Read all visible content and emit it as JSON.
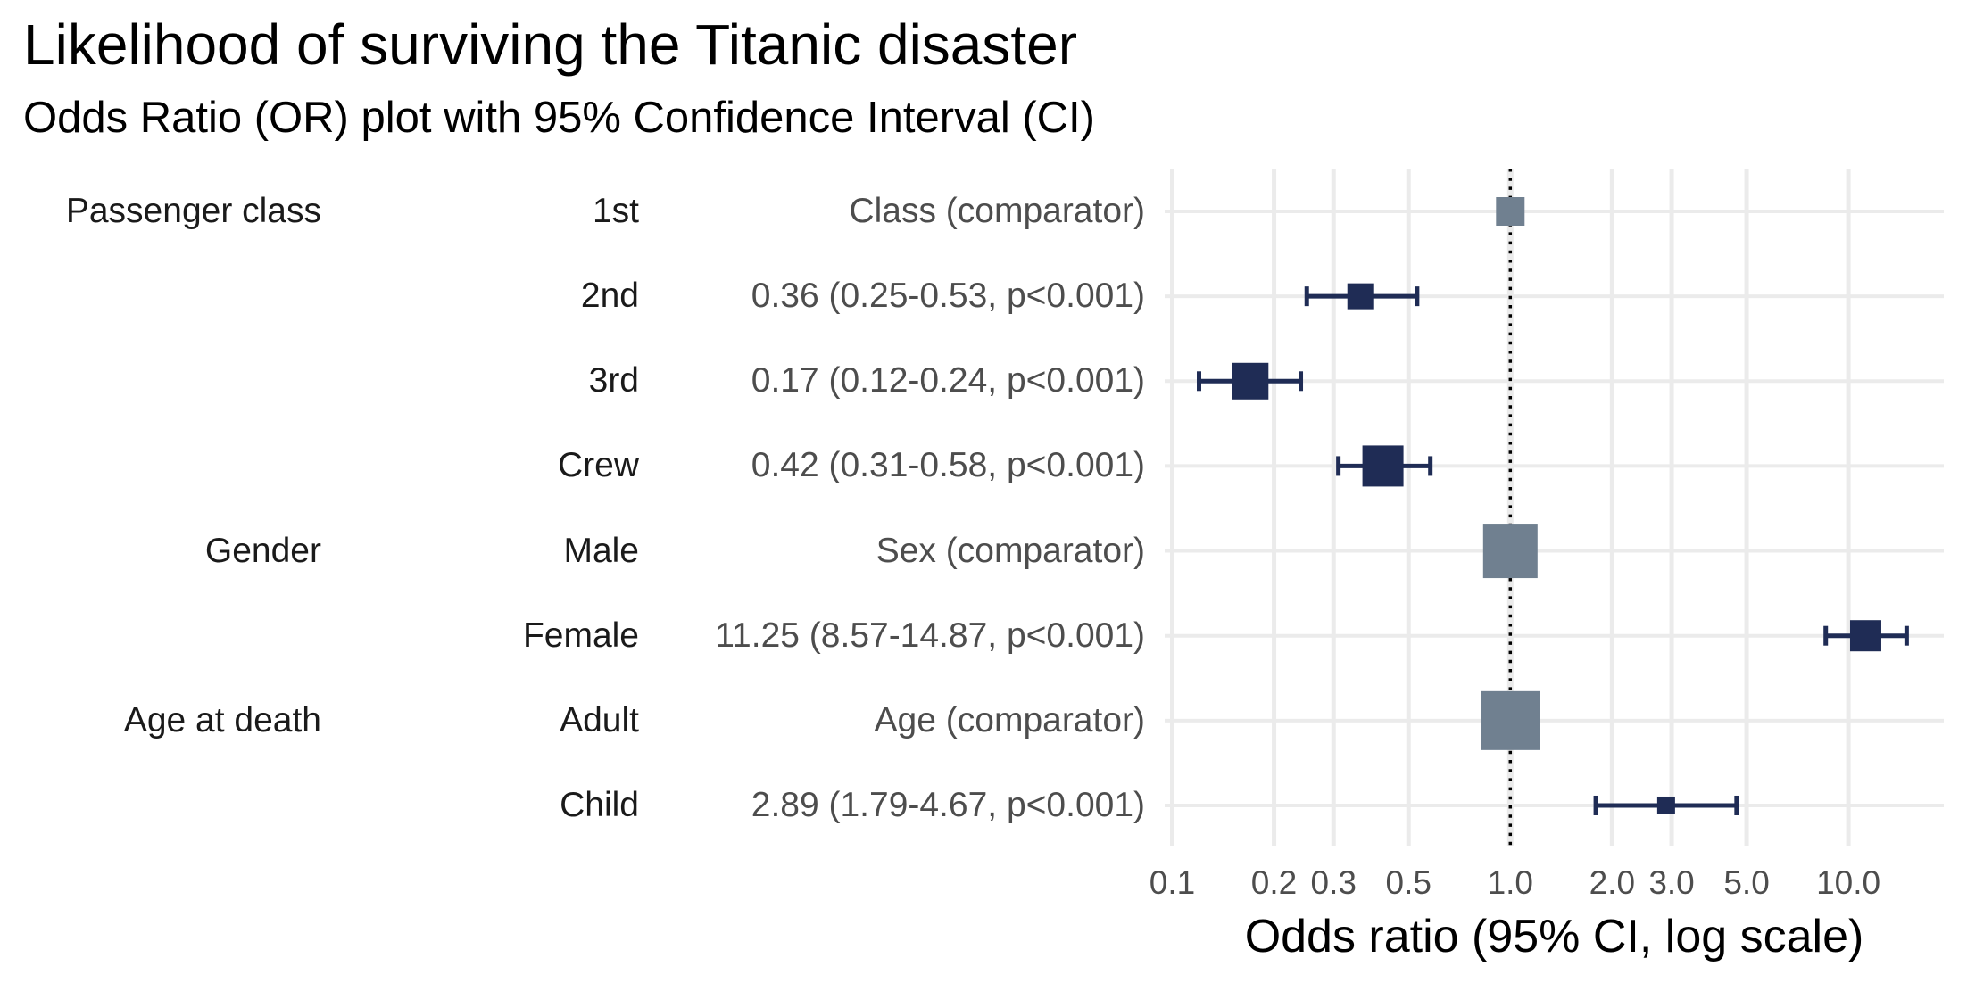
{
  "chart_data": {
    "type": "forest",
    "title": "Likelihood of surviving the Titanic disaster",
    "subtitle": "Odds Ratio (OR) plot with 95% Confidence Interval (CI)",
    "xlabel": "Odds ratio (95% CI, log scale)",
    "x_scale": "log10",
    "x_reference": 1.0,
    "x_range_displayed": [
      0.095,
      19.3
    ],
    "grid": true,
    "legend": false,
    "x_ticks": {
      "values": [
        0.1,
        0.2,
        0.3,
        0.5,
        1.0,
        2.0,
        3.0,
        5.0,
        10.0
      ],
      "labels": [
        "0.1",
        "0.2",
        "0.3",
        "0.5",
        "1.0",
        "2.0",
        "3.0",
        "5.0",
        "10.0"
      ]
    },
    "rows": [
      {
        "group": "Passenger class",
        "label": "1st",
        "annotation": "Class (comparator)",
        "or": 1.0,
        "ci_low": null,
        "ci_high": null,
        "comparator": true,
        "square_size": 32
      },
      {
        "group": "",
        "label": "2nd",
        "annotation": "0.36 (0.25-0.53, p<0.001)",
        "or": 0.36,
        "ci_low": 0.25,
        "ci_high": 0.53,
        "comparator": false,
        "square_size": 29
      },
      {
        "group": "",
        "label": "3rd",
        "annotation": "0.17 (0.12-0.24, p<0.001)",
        "or": 0.17,
        "ci_low": 0.12,
        "ci_high": 0.24,
        "comparator": false,
        "square_size": 41
      },
      {
        "group": "",
        "label": "Crew",
        "annotation": "0.42 (0.31-0.58, p<0.001)",
        "or": 0.42,
        "ci_low": 0.31,
        "ci_high": 0.58,
        "comparator": false,
        "square_size": 46
      },
      {
        "group": "Gender",
        "label": "Male",
        "annotation": "Sex (comparator)",
        "or": 1.0,
        "ci_low": null,
        "ci_high": null,
        "comparator": true,
        "square_size": 61
      },
      {
        "group": "",
        "label": "Female",
        "annotation": "11.25 (8.57-14.87, p<0.001)",
        "or": 11.25,
        "ci_low": 8.57,
        "ci_high": 14.87,
        "comparator": false,
        "square_size": 35
      },
      {
        "group": "Age at death",
        "label": "Adult",
        "annotation": "Age (comparator)",
        "or": 1.0,
        "ci_low": null,
        "ci_high": null,
        "comparator": true,
        "square_size": 66
      },
      {
        "group": "",
        "label": "Child",
        "annotation": "2.89 (1.79-4.67, p<0.001)",
        "or": 2.89,
        "ci_low": 1.79,
        "ci_high": 4.67,
        "comparator": false,
        "square_size": 20
      }
    ],
    "colors": {
      "estimate_square": "#1F2C55",
      "comparator_square": "#708090",
      "whisker": "#1F2C55",
      "gridline": "#EBEBEB",
      "reference_line": "#000000",
      "value_text": "#4D4D4D",
      "axis_tick_text": "#4D4D4D",
      "label_text": "#1A1A1A",
      "title_text": "#000000"
    }
  }
}
